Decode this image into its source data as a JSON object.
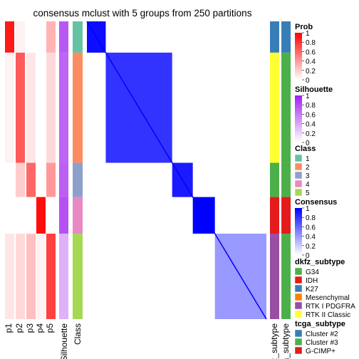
{
  "chart_data": {
    "type": "heatmap",
    "title": "consensus mclust with 5 groups from 250 partitions",
    "row_annotations": [
      "p1",
      "p2",
      "p3",
      "p4",
      "p5",
      "Silhouette",
      "Class"
    ],
    "right_annotations": [
      "dkfz_subtype",
      "tcga_subtype"
    ],
    "classes": [
      {
        "id": "1",
        "color": "#66C2A5",
        "fraction": 0.105
      },
      {
        "id": "2",
        "color": "#FC8D62",
        "fraction": 0.37
      },
      {
        "id": "3",
        "color": "#8DA0CB",
        "fraction": 0.115
      },
      {
        "id": "4",
        "color": "#E78AC3",
        "fraction": 0.123
      },
      {
        "id": "5",
        "color": "#A6D854",
        "fraction": 0.287
      }
    ],
    "class_probability": [
      [
        0.9,
        0.05,
        0.0,
        0.0,
        0.3
      ],
      [
        0.05,
        0.65,
        0.1,
        0.0,
        0.15
      ],
      [
        0.0,
        0.2,
        0.6,
        0.0,
        0.4
      ],
      [
        0.0,
        0.0,
        0.0,
        0.95,
        0.0
      ],
      [
        0.1,
        0.15,
        0.25,
        0.05,
        0.75
      ]
    ],
    "silhouette": [
      0.75,
      0.7,
      0.72,
      0.78,
      0.35
    ],
    "within_block_consensus": [
      0.95,
      0.8,
      0.9,
      1.0,
      0.4
    ],
    "legends": {
      "prob": {
        "title": "Prob",
        "ticks": [
          "1",
          "0.8",
          "0.6",
          "0.4",
          "0.2",
          "0"
        ],
        "low": "#ffffff",
        "high": "#ff0000"
      },
      "silhouette": {
        "title": "Silhouette",
        "ticks": [
          "1",
          "0.8",
          "0.6",
          "0.4",
          "0.2",
          "0"
        ],
        "low": "#ffffff",
        "high": "#a020f0"
      },
      "class": {
        "title": "Class",
        "labels": [
          "1",
          "2",
          "3",
          "4",
          "5"
        ]
      },
      "consensus": {
        "title": "Consensus",
        "ticks": [
          "1",
          "0.8",
          "0.6",
          "0.4",
          "0.2",
          "0"
        ],
        "low": "#ffffff",
        "high": "#0000ff"
      },
      "dkfz_subtype": {
        "title": "dkfz_subtype",
        "items": [
          {
            "label": "G34",
            "color": "#4DAF4A"
          },
          {
            "label": "IDH",
            "color": "#E41A1C"
          },
          {
            "label": "K27",
            "color": "#377EB8"
          },
          {
            "label": "Mesenchymal",
            "color": "#FF7F00"
          },
          {
            "label": "RTK I PDGFRA",
            "color": "#984EA3"
          },
          {
            "label": "RTK II Classic",
            "color": "#FFFF33"
          }
        ]
      },
      "tcga_subtype": {
        "title": "tcga_subtype",
        "items": [
          {
            "label": "Cluster #2",
            "color": "#377EB8"
          },
          {
            "label": "Cluster #3",
            "color": "#4DAF4A"
          },
          {
            "label": "G-CIMP+",
            "color": "#E41A1C"
          }
        ]
      }
    }
  }
}
